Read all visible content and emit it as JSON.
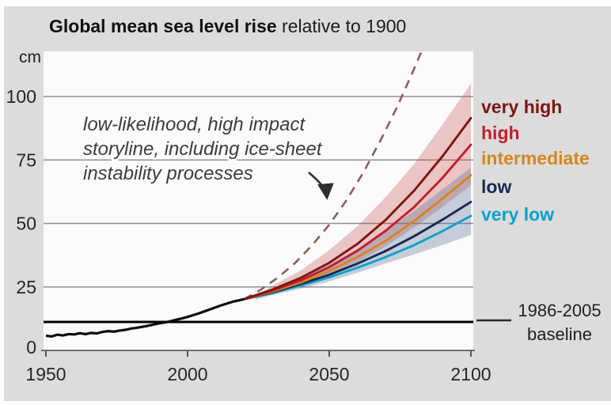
{
  "title": {
    "bold": "Global mean sea level rise",
    "regular": " relative to 1900"
  },
  "unit_label": "cm",
  "annotation": {
    "lines": [
      "low-likelihood, high impact",
      "storyline, including ice-sheet",
      "instability processes"
    ]
  },
  "baseline_label": {
    "line1": "1986-2005",
    "line2": "baseline"
  },
  "colors": {
    "page_margin": "#ffffff",
    "background": "#dcdcdc",
    "plot_background": "#fbfbfb",
    "gridline": "#909090",
    "axis": "#6e6e6e",
    "observed": "#0d0d0d",
    "baseline": "#000000",
    "storyline_dash": "#8c5f5a",
    "annotation_text": "#3c3c3c",
    "title_text": "#111111",
    "tick_text": "#262626",
    "band_red": "rgba(200,70,70,0.30)",
    "band_blue": "rgba(90,110,150,0.33)"
  },
  "chart_data": {
    "type": "line",
    "title": "Global mean sea level rise relative to 1900",
    "ylabel": "cm",
    "xlabel": "",
    "xlim": [
      1950,
      2100
    ],
    "ylim": [
      0,
      117.8
    ],
    "x_ticks": [
      1950,
      2000,
      2050,
      2100
    ],
    "y_ticks": [
      0,
      25,
      50,
      75,
      100
    ],
    "grid": true,
    "legend_position": "right-outside",
    "baseline": {
      "label": "1986-2005 baseline",
      "value_cm": 11.2
    },
    "observed": {
      "name": "observed",
      "color": "#0d0d0d",
      "points": [
        [
          1950,
          5.8
        ],
        [
          1952,
          5.5
        ],
        [
          1954,
          6.2
        ],
        [
          1956,
          5.9
        ],
        [
          1958,
          6.4
        ],
        [
          1960,
          6.3
        ],
        [
          1962,
          6.8
        ],
        [
          1964,
          6.4
        ],
        [
          1966,
          6.9
        ],
        [
          1968,
          6.7
        ],
        [
          1970,
          7.3
        ],
        [
          1972,
          7.6
        ],
        [
          1974,
          7.4
        ],
        [
          1976,
          7.8
        ],
        [
          1978,
          8.1
        ],
        [
          1980,
          8.6
        ],
        [
          1982,
          8.9
        ],
        [
          1984,
          9.3
        ],
        [
          1986,
          9.7
        ],
        [
          1988,
          10.2
        ],
        [
          1990,
          10.7
        ],
        [
          1992,
          11.0
        ],
        [
          1994,
          11.5
        ],
        [
          1996,
          12.1
        ],
        [
          1998,
          12.6
        ],
        [
          2000,
          13.2
        ],
        [
          2002,
          13.9
        ],
        [
          2004,
          14.6
        ],
        [
          2006,
          15.4
        ],
        [
          2008,
          16.2
        ],
        [
          2010,
          17.0
        ],
        [
          2012,
          17.8
        ],
        [
          2014,
          18.5
        ],
        [
          2016,
          19.2
        ],
        [
          2018,
          19.7
        ],
        [
          2020,
          20.2
        ]
      ]
    },
    "x_scenario": [
      2020,
      2030,
      2040,
      2050,
      2060,
      2070,
      2080,
      2090,
      2100
    ],
    "series": [
      {
        "name": "very high",
        "color": "#7d150f",
        "values": [
          20.2,
          24.0,
          28.6,
          34.5,
          42.0,
          51.5,
          63.0,
          76.5,
          91.5
        ]
      },
      {
        "name": "high",
        "color": "#c01f2e",
        "values": [
          20.2,
          23.6,
          27.6,
          32.8,
          39.3,
          47.2,
          56.5,
          68.0,
          81.0
        ]
      },
      {
        "name": "intermediate",
        "color": "#d6861c",
        "values": [
          20.2,
          23.2,
          26.8,
          31.3,
          36.8,
          43.2,
          51.0,
          59.8,
          69.0
        ]
      },
      {
        "name": "low",
        "color": "#172a52",
        "values": [
          20.2,
          22.9,
          26.2,
          29.8,
          34.2,
          39.2,
          45.0,
          51.5,
          58.5
        ]
      },
      {
        "name": "very low",
        "color": "#0aa2c8",
        "values": [
          20.2,
          22.6,
          25.6,
          28.8,
          32.6,
          36.8,
          41.5,
          47.0,
          53.0
        ]
      }
    ],
    "bands": [
      {
        "name": "high-scenarios-range",
        "fill": "rgba(200,70,70,0.30)",
        "x": [
          2024,
          2030,
          2040,
          2050,
          2060,
          2070,
          2080,
          2090,
          2100
        ],
        "upper": [
          21.5,
          25.5,
          31.5,
          39.5,
          49.0,
          60.5,
          73.5,
          89.0,
          105.0
        ],
        "lower": [
          20.8,
          22.5,
          25.8,
          29.8,
          34.8,
          41.0,
          48.5,
          56.5,
          65.0
        ]
      },
      {
        "name": "low-scenarios-range",
        "fill": "rgba(90,110,150,0.33)",
        "x": [
          2024,
          2030,
          2040,
          2050,
          2060,
          2070,
          2080,
          2090,
          2100
        ],
        "upper": [
          21.2,
          24.3,
          28.6,
          33.8,
          40.0,
          47.2,
          55.0,
          63.5,
          72.0
        ],
        "lower": [
          20.0,
          21.8,
          24.3,
          27.2,
          30.6,
          34.3,
          37.8,
          41.5,
          45.5
        ]
      }
    ],
    "storyline": {
      "name": "low-likelihood, high impact storyline, including ice-sheet instability processes",
      "color": "#8c5f5a",
      "dashed": true,
      "points": [
        [
          2020,
          20.2
        ],
        [
          2026,
          24.0
        ],
        [
          2032,
          28.8
        ],
        [
          2038,
          34.5
        ],
        [
          2044,
          41.5
        ],
        [
          2050,
          49.5
        ],
        [
          2056,
          59.0
        ],
        [
          2062,
          70.0
        ],
        [
          2068,
          82.5
        ],
        [
          2074,
          96.0
        ],
        [
          2080,
          111.0
        ],
        [
          2086,
          127.0
        ]
      ]
    }
  }
}
